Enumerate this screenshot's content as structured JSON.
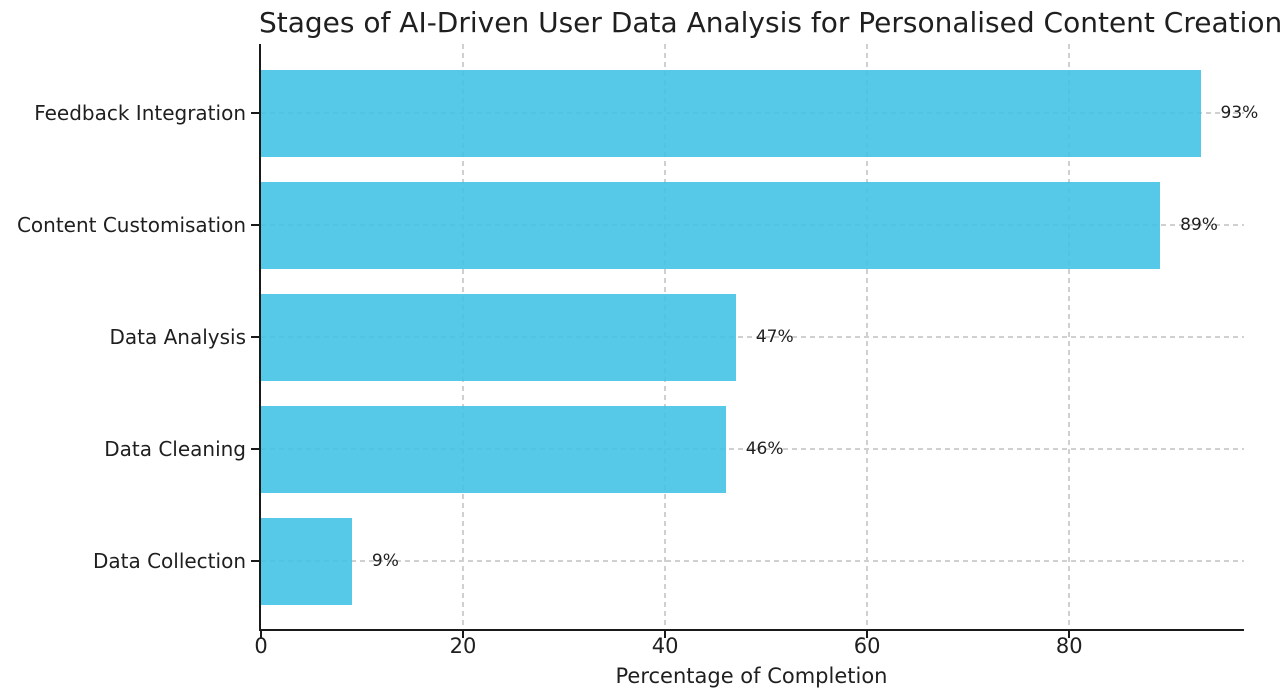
{
  "chart_data": {
    "type": "bar",
    "orientation": "horizontal",
    "title": "Stages of AI-Driven User Data Analysis for Personalised Content Creation",
    "xlabel": "Percentage of Completion",
    "ylabel": "",
    "categories": [
      "Feedback Integration",
      "Content Customisation",
      "Data Analysis",
      "Data Cleaning",
      "Data Collection"
    ],
    "values": [
      93,
      89,
      47,
      46,
      9
    ],
    "value_labels": [
      "93%",
      "89%",
      "47%",
      "46%",
      "9%"
    ],
    "xticks": [
      0,
      20,
      40,
      60,
      80
    ],
    "xtick_labels": [
      "0",
      "20",
      "40",
      "60",
      "80"
    ],
    "xlim": [
      0,
      97.3
    ],
    "grid": "dashed",
    "legend": "none",
    "colors": {
      "bar_fill": "#3fc0e5",
      "bar_opacity": 0.88,
      "grid": "#d0d0d0",
      "axis": "#1a1a1a",
      "text": "#1f1f1f",
      "background": "#ffffff"
    }
  }
}
